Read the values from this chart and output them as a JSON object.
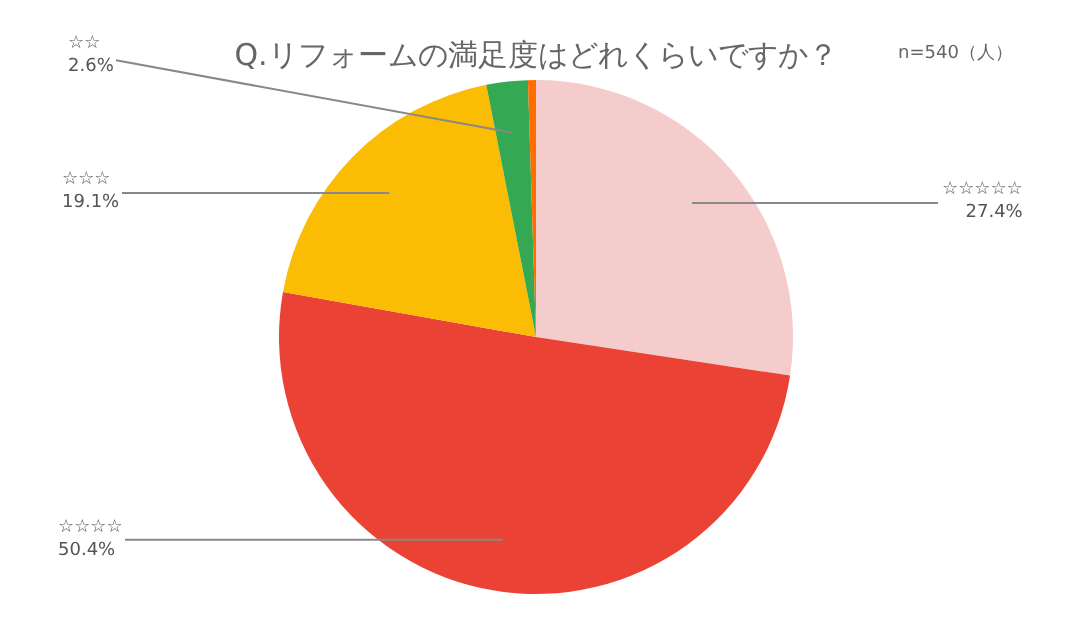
{
  "chart_data": {
    "type": "pie",
    "title": "Q.リフォームの満足度はどれくらいですか？",
    "subtitle": "n=540（人）",
    "categories": [
      "☆☆☆☆☆",
      "☆☆☆☆",
      "☆☆☆",
      "☆☆",
      null
    ],
    "values": [
      27.4,
      50.4,
      19.1,
      2.6,
      0.5
    ],
    "colors": [
      "#f4cccc",
      "#ea4335",
      "#fbbc04",
      "#34a853",
      "#ff6d01"
    ],
    "value_labels": [
      "27.4%",
      "50.4%",
      "19.1%",
      "2.6%",
      null
    ],
    "legend": false
  }
}
